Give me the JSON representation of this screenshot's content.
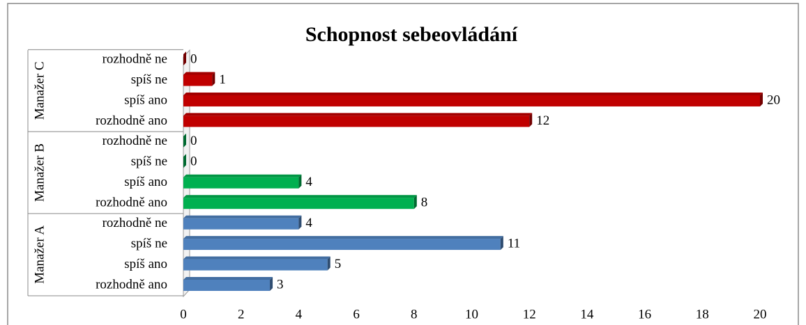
{
  "chart_data": {
    "type": "bar",
    "orientation": "horizontal",
    "title": "Schopnost  sebeovládání",
    "groups": [
      {
        "name": "Manažer A",
        "color": "#4f81bd",
        "categories": [
          "rozhodně ano",
          "spíš ano",
          "spíš ne",
          "rozhodně ne"
        ],
        "values": [
          3,
          5,
          11,
          4
        ]
      },
      {
        "name": "Manažer B",
        "color": "#00b050",
        "categories": [
          "rozhodně ano",
          "spíš ano",
          "spíš ne",
          "rozhodně ne"
        ],
        "values": [
          8,
          4,
          0,
          0
        ]
      },
      {
        "name": "Manažer C",
        "color": "#c00000",
        "categories": [
          "rozhodně ano",
          "spíš ano",
          "spíš ne",
          "rozhodně ne"
        ],
        "values": [
          12,
          20,
          1,
          0
        ]
      }
    ],
    "xlim": [
      0,
      20
    ],
    "xticks": [
      0,
      2,
      4,
      6,
      8,
      10,
      12,
      14,
      16,
      18,
      20
    ],
    "grid": false
  }
}
